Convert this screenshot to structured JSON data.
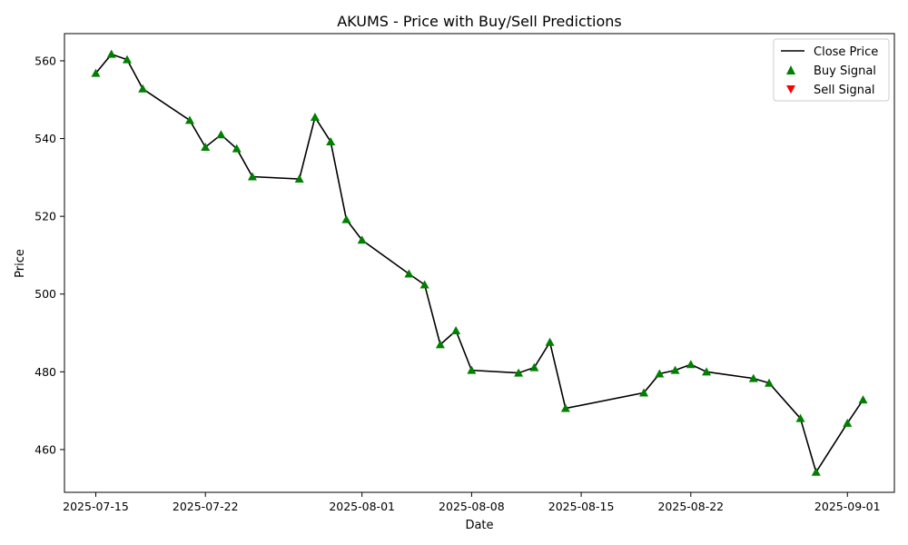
{
  "chart_data": {
    "type": "line",
    "title": "AKUMS - Price with Buy/Sell Predictions",
    "xlabel": "Date",
    "ylabel": "Price",
    "x_ticks": [
      "2025-07-15",
      "2025-07-22",
      "2025-08-01",
      "2025-08-08",
      "2025-08-15",
      "2025-08-22",
      "2025-09-01"
    ],
    "y_ticks": [
      460,
      480,
      500,
      520,
      540,
      560
    ],
    "xlim": [
      "2025-07-13",
      "2025-09-04"
    ],
    "ylim": [
      449,
      567
    ],
    "grid": false,
    "legend_position": "top-right",
    "legend": [
      "Close Price",
      "Buy Signal",
      "Sell Signal"
    ],
    "colors": {
      "line": "#000000",
      "buy": "#008000",
      "sell": "#ff0000"
    },
    "series": [
      {
        "name": "Close Price",
        "x": [
          "2025-07-15",
          "2025-07-16",
          "2025-07-17",
          "2025-07-18",
          "2025-07-21",
          "2025-07-22",
          "2025-07-23",
          "2025-07-24",
          "2025-07-25",
          "2025-07-28",
          "2025-07-29",
          "2025-07-30",
          "2025-07-31",
          "2025-08-01",
          "2025-08-04",
          "2025-08-05",
          "2025-08-06",
          "2025-08-07",
          "2025-08-08",
          "2025-08-11",
          "2025-08-12",
          "2025-08-13",
          "2025-08-14",
          "2025-08-19",
          "2025-08-20",
          "2025-08-21",
          "2025-08-22",
          "2025-08-23",
          "2025-08-26",
          "2025-08-27",
          "2025-08-29",
          "2025-08-30",
          "2025-09-01",
          "2025-09-02"
        ],
        "values": [
          556.8,
          561.7,
          560.3,
          552.8,
          544.7,
          537.8,
          541.0,
          537.4,
          530.2,
          529.6,
          545.5,
          539.2,
          519.2,
          513.9,
          505.2,
          502.4,
          487.0,
          490.6,
          480.4,
          479.7,
          481.1,
          487.6,
          470.6,
          474.6,
          479.5,
          480.4,
          481.9,
          480.0,
          478.3,
          477.1,
          468.0,
          454.2,
          466.8,
          472.8
        ]
      },
      {
        "name": "Buy Signal",
        "x": [
          "2025-07-15",
          "2025-07-16",
          "2025-07-17",
          "2025-07-18",
          "2025-07-21",
          "2025-07-22",
          "2025-07-23",
          "2025-07-24",
          "2025-07-25",
          "2025-07-28",
          "2025-07-29",
          "2025-07-30",
          "2025-07-31",
          "2025-08-01",
          "2025-08-04",
          "2025-08-05",
          "2025-08-06",
          "2025-08-07",
          "2025-08-08",
          "2025-08-11",
          "2025-08-12",
          "2025-08-13",
          "2025-08-14",
          "2025-08-19",
          "2025-08-20",
          "2025-08-21",
          "2025-08-22",
          "2025-08-23",
          "2025-08-26",
          "2025-08-27",
          "2025-08-29",
          "2025-08-30",
          "2025-09-01",
          "2025-09-02"
        ],
        "values": [
          556.8,
          561.7,
          560.3,
          552.8,
          544.7,
          537.8,
          541.0,
          537.4,
          530.2,
          529.6,
          545.5,
          539.2,
          519.2,
          513.9,
          505.2,
          502.4,
          487.0,
          490.6,
          480.4,
          479.7,
          481.1,
          487.6,
          470.6,
          474.6,
          479.5,
          480.4,
          481.9,
          480.0,
          478.3,
          477.1,
          468.0,
          454.2,
          466.8,
          472.8
        ]
      },
      {
        "name": "Sell Signal",
        "x": [],
        "values": []
      }
    ]
  }
}
